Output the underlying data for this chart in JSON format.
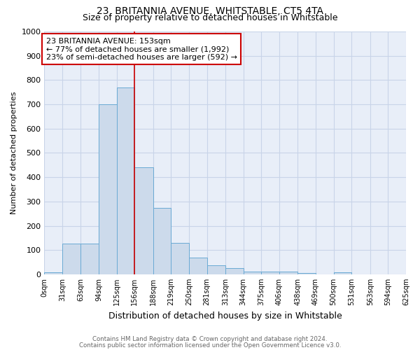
{
  "title": "23, BRITANNIA AVENUE, WHITSTABLE, CT5 4TA",
  "subtitle": "Size of property relative to detached houses in Whitstable",
  "xlabel": "Distribution of detached houses by size in Whitstable",
  "ylabel": "Number of detached properties",
  "footnote1": "Contains HM Land Registry data © Crown copyright and database right 2024.",
  "footnote2": "Contains public sector information licensed under the Open Government Licence v3.0.",
  "bin_labels": [
    "0sqm",
    "31sqm",
    "63sqm",
    "94sqm",
    "125sqm",
    "156sqm",
    "188sqm",
    "219sqm",
    "250sqm",
    "281sqm",
    "313sqm",
    "344sqm",
    "375sqm",
    "406sqm",
    "438sqm",
    "469sqm",
    "500sqm",
    "531sqm",
    "563sqm",
    "594sqm",
    "625sqm"
  ],
  "bar_values": [
    8,
    128,
    128,
    700,
    770,
    440,
    275,
    130,
    70,
    38,
    25,
    12,
    12,
    10,
    5,
    0,
    8,
    0,
    0,
    0
  ],
  "bar_color": "#ccdaeb",
  "bar_edge_color": "#6aaad4",
  "property_line_x": 156,
  "bin_edges": [
    0,
    31,
    63,
    94,
    125,
    156,
    188,
    219,
    250,
    281,
    313,
    344,
    375,
    406,
    438,
    469,
    500,
    531,
    563,
    594,
    625
  ],
  "vline_color": "#cc0000",
  "annotation_text": "23 BRITANNIA AVENUE: 153sqm\n← 77% of detached houses are smaller (1,992)\n23% of semi-detached houses are larger (592) →",
  "annotation_box_color": "#ffffff",
  "annotation_box_edge": "#cc0000",
  "ylim": [
    0,
    1000
  ],
  "yticks": [
    0,
    100,
    200,
    300,
    400,
    500,
    600,
    700,
    800,
    900,
    1000
  ],
  "grid_color": "#c8d4e8",
  "bg_color": "#e8eef8",
  "title_fontsize": 10,
  "subtitle_fontsize": 9
}
